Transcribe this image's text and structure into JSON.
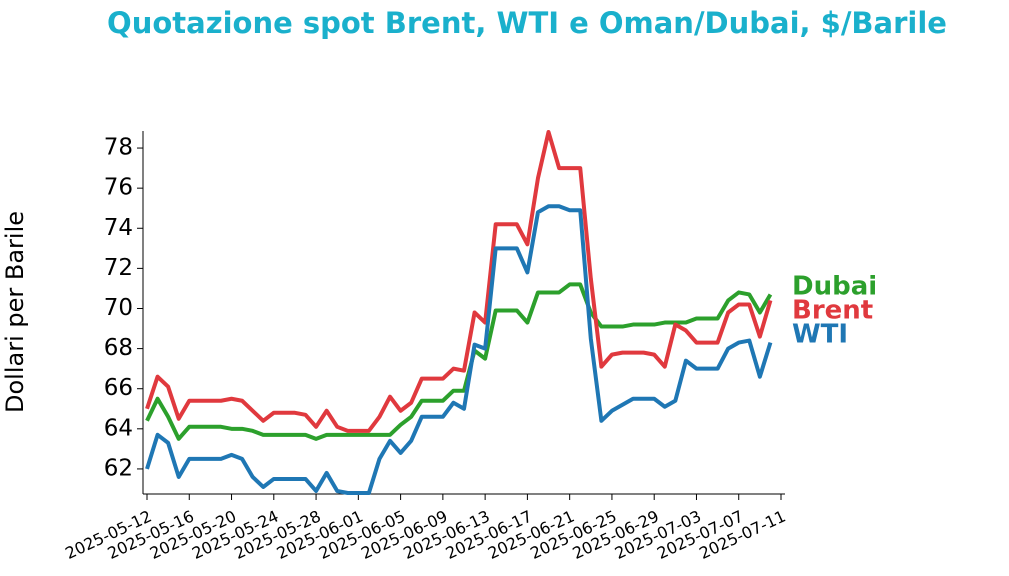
{
  "chart_data": {
    "type": "line",
    "title": "Quotazione spot Brent, WTI e Oman/Dubai, $/Barile",
    "y_label": "Dollari per Barile",
    "x": [
      "2025-05-12",
      "2025-05-13",
      "2025-05-14",
      "2025-05-15",
      "2025-05-16",
      "2025-05-17",
      "2025-05-18",
      "2025-05-19",
      "2025-05-20",
      "2025-05-21",
      "2025-05-22",
      "2025-05-23",
      "2025-05-24",
      "2025-05-25",
      "2025-05-26",
      "2025-05-27",
      "2025-05-28",
      "2025-05-29",
      "2025-05-30",
      "2025-05-31",
      "2025-06-01",
      "2025-06-02",
      "2025-06-03",
      "2025-06-04",
      "2025-06-05",
      "2025-06-06",
      "2025-06-07",
      "2025-06-08",
      "2025-06-09",
      "2025-06-10",
      "2025-06-11",
      "2025-06-12",
      "2025-06-13",
      "2025-06-14",
      "2025-06-15",
      "2025-06-16",
      "2025-06-17",
      "2025-06-18",
      "2025-06-19",
      "2025-06-20",
      "2025-06-21",
      "2025-06-22",
      "2025-06-23",
      "2025-06-24",
      "2025-06-25",
      "2025-06-26",
      "2025-06-27",
      "2025-06-28",
      "2025-06-29",
      "2025-06-30",
      "2025-07-01",
      "2025-07-02",
      "2025-07-03",
      "2025-07-04",
      "2025-07-05",
      "2025-07-06",
      "2025-07-07",
      "2025-07-08",
      "2025-07-09",
      "2025-07-10"
    ],
    "series": [
      {
        "name": "Dubai",
        "color": "#2ca02c",
        "values": [
          64.4,
          65.5,
          64.6,
          63.5,
          64.1,
          64.1,
          64.1,
          64.1,
          64.0,
          64.0,
          63.9,
          63.7,
          63.7,
          63.7,
          63.7,
          63.7,
          63.5,
          63.7,
          63.7,
          63.7,
          63.7,
          63.7,
          63.7,
          63.7,
          64.2,
          64.6,
          65.4,
          65.4,
          65.4,
          65.9,
          65.9,
          67.9,
          67.5,
          69.9,
          69.9,
          69.9,
          69.3,
          70.8,
          70.8,
          70.8,
          71.2,
          71.2,
          69.8,
          69.1,
          69.1,
          69.1,
          69.2,
          69.2,
          69.2,
          69.3,
          69.3,
          69.3,
          69.5,
          69.5,
          69.5,
          70.4,
          70.8,
          70.7,
          69.8,
          70.7
        ]
      },
      {
        "name": "Brent",
        "color": "#e0393e",
        "values": [
          65.0,
          66.6,
          66.1,
          64.5,
          65.4,
          65.4,
          65.4,
          65.4,
          65.5,
          65.4,
          64.9,
          64.4,
          64.8,
          64.8,
          64.8,
          64.7,
          64.1,
          64.9,
          64.1,
          63.9,
          63.9,
          63.9,
          64.6,
          65.6,
          64.9,
          65.3,
          66.5,
          66.5,
          66.5,
          67.0,
          66.9,
          69.8,
          69.3,
          74.2,
          74.2,
          74.2,
          73.2,
          76.5,
          78.8,
          77.0,
          77.0,
          77.0,
          71.5,
          67.1,
          67.7,
          67.8,
          67.8,
          67.8,
          67.7,
          67.1,
          69.2,
          68.9,
          68.3,
          68.3,
          68.3,
          69.8,
          70.2,
          70.2,
          68.6,
          70.4
        ]
      },
      {
        "name": "WTI",
        "color": "#1f77b4",
        "values": [
          62.0,
          63.7,
          63.3,
          61.6,
          62.5,
          62.5,
          62.5,
          62.5,
          62.7,
          62.5,
          61.6,
          61.1,
          61.5,
          61.5,
          61.5,
          61.5,
          60.9,
          61.8,
          60.9,
          60.8,
          60.8,
          60.8,
          62.5,
          63.4,
          62.8,
          63.4,
          64.6,
          64.6,
          64.6,
          65.3,
          65.0,
          68.2,
          68.0,
          73.0,
          73.0,
          73.0,
          71.8,
          74.8,
          75.1,
          75.1,
          74.9,
          74.9,
          68.5,
          64.4,
          64.9,
          65.2,
          65.5,
          65.5,
          65.5,
          65.1,
          65.4,
          67.4,
          67.0,
          67.0,
          67.0,
          68.0,
          68.3,
          68.4,
          66.6,
          68.3
        ]
      }
    ],
    "xlim": [
      "2025-05-12",
      "2025-07-11"
    ],
    "xticks": [
      "2025-05-12",
      "2025-05-16",
      "2025-05-20",
      "2025-05-24",
      "2025-05-28",
      "2025-06-01",
      "2025-06-05",
      "2025-06-09",
      "2025-06-13",
      "2025-06-17",
      "2025-06-21",
      "2025-06-25",
      "2025-06-29",
      "2025-07-03",
      "2025-07-07",
      "2025-07-11"
    ],
    "ylim": [
      60.75,
      78.85
    ],
    "yticks": [
      62,
      64,
      66,
      68,
      70,
      72,
      74,
      76,
      78
    ],
    "grid": false
  }
}
